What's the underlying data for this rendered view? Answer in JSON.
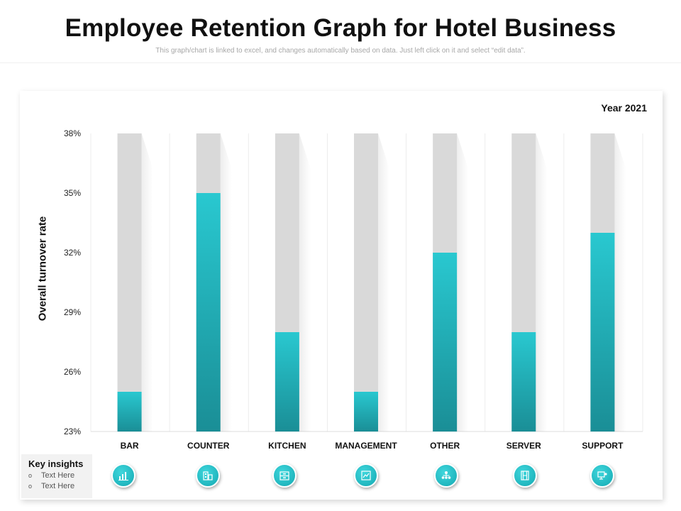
{
  "page": {
    "title": "Employee Retention Graph for Hotel Business",
    "subtitle": "This graph/chart is linked to excel, and changes automatically based on data. Just left click on it and select “edit data”."
  },
  "chart_data": {
    "type": "bar",
    "title": "Year 2021",
    "ylabel": "Overall turnover rate",
    "xlabel": "",
    "categories": [
      "BAR",
      "COUNTER",
      "KITCHEN",
      "MANAGEMENT",
      "OTHER",
      "SERVER",
      "SUPPORT"
    ],
    "values": [
      25,
      35,
      28,
      25,
      32,
      28,
      33
    ],
    "ylim": [
      23,
      38
    ],
    "yticks": [
      23,
      26,
      29,
      32,
      35,
      38
    ],
    "ytick_labels": [
      "23%",
      "26%",
      "29%",
      "32%",
      "35%",
      "38%"
    ],
    "grid": "vertical",
    "colors": {
      "bar_top": "#29c8d0",
      "bar_bottom": "#1a8e96",
      "track": "#d9d9d9"
    }
  },
  "key_insights": {
    "title": "Key insights",
    "items": [
      "Text Here",
      "Text Here"
    ]
  },
  "icons": [
    "bar-chart-icon",
    "buildings-icon",
    "cabinet-icon",
    "document-chart-icon",
    "team-hierarchy-icon",
    "film-strip-icon",
    "support-desk-icon"
  ]
}
